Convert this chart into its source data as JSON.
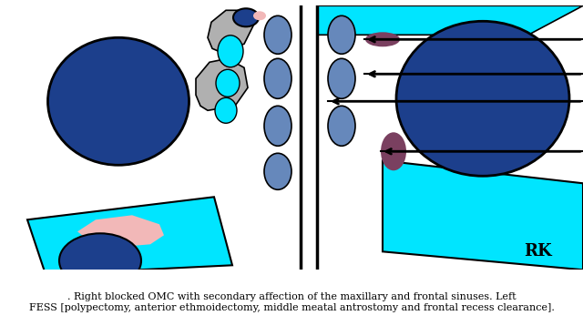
{
  "bg_color": "#ffffff",
  "title_text": ". Right blocked OMC with secondary affection of the maxillary and frontal sinuses. Left\nFESS [polypectomy, anterior ethmoidectomy, middle meatal antrostomy and frontal recess clearance].",
  "rk_text": "RK",
  "fig_width": 6.4,
  "fig_height": 3.69,
  "dpi": 100,
  "colors": {
    "dark_blue": "#1c3f8c",
    "medium_blue": "#6688bb",
    "cyan": "#00e5ff",
    "gray": "#b0b0b0",
    "pink_light": "#f2b8b8",
    "purple_dark": "#7a4060",
    "white": "#ffffff",
    "black": "#000000"
  }
}
